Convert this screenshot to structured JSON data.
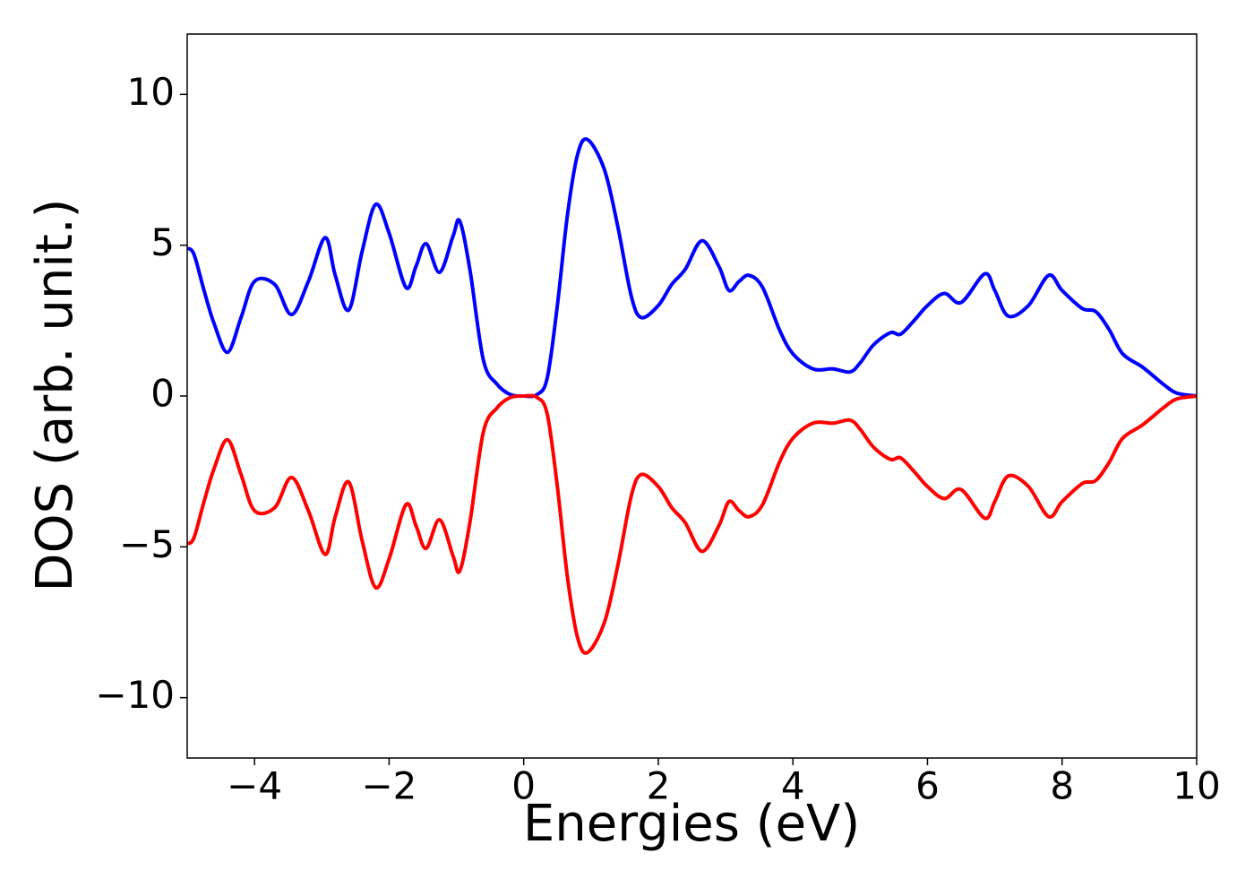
{
  "chart_data": {
    "type": "line",
    "xlabel": "Energies (eV)",
    "ylabel": "DOS (arb. unit.)",
    "xlim": [
      -5,
      10
    ],
    "ylim": [
      -12,
      12
    ],
    "xticks": [
      {
        "value": -4,
        "label": "−4"
      },
      {
        "value": -2,
        "label": "−2"
      },
      0,
      2,
      4,
      6,
      8,
      10
    ],
    "yticks": [
      {
        "value": -10,
        "label": "−10"
      },
      {
        "value": -5,
        "label": "−5"
      },
      0,
      5,
      10
    ],
    "x": [
      -5,
      -4.9,
      -4.75,
      -4.6,
      -4.4,
      -4.2,
      -4.0,
      -3.7,
      -3.45,
      -3.2,
      -2.95,
      -2.8,
      -2.6,
      -2.4,
      -2.2,
      -2.0,
      -1.75,
      -1.6,
      -1.45,
      -1.25,
      -1.05,
      -0.95,
      -0.8,
      -0.6,
      -0.4,
      -0.2,
      0,
      0.2,
      0.35,
      0.5,
      0.65,
      0.8,
      0.95,
      1.2,
      1.4,
      1.6,
      1.75,
      2.0,
      2.2,
      2.4,
      2.65,
      2.9,
      3.05,
      3.2,
      3.35,
      3.55,
      3.8,
      4.0,
      4.3,
      4.6,
      4.85,
      5.0,
      5.2,
      5.45,
      5.6,
      5.8,
      6.0,
      6.25,
      6.5,
      6.85,
      7.0,
      7.2,
      7.5,
      7.8,
      8.0,
      8.3,
      8.5,
      8.7,
      8.9,
      9.2,
      9.5,
      9.7,
      10.0
    ],
    "series": [
      {
        "color": "#0000ff",
        "values": [
          4.9,
          4.7,
          3.5,
          2.4,
          1.45,
          2.6,
          3.8,
          3.7,
          2.7,
          3.8,
          5.25,
          4.0,
          2.85,
          4.8,
          6.35,
          5.4,
          3.6,
          4.3,
          5.05,
          4.1,
          5.3,
          5.8,
          4.2,
          1.2,
          0.4,
          0.05,
          0.0,
          0.05,
          0.6,
          3.0,
          6.0,
          8.0,
          8.5,
          7.5,
          5.6,
          3.3,
          2.6,
          3.0,
          3.7,
          4.2,
          5.15,
          4.3,
          3.5,
          3.8,
          4.0,
          3.6,
          2.2,
          1.4,
          0.9,
          0.9,
          0.8,
          1.1,
          1.7,
          2.1,
          2.05,
          2.5,
          3.0,
          3.4,
          3.1,
          4.05,
          3.5,
          2.65,
          3.0,
          4.0,
          3.5,
          2.9,
          2.8,
          2.2,
          1.4,
          0.95,
          0.4,
          0.1,
          0.0
        ]
      },
      {
        "color": "#ff0000",
        "values": [
          -4.9,
          -4.7,
          -3.5,
          -2.4,
          -1.45,
          -2.6,
          -3.8,
          -3.7,
          -2.7,
          -3.8,
          -5.25,
          -4.0,
          -2.85,
          -4.8,
          -6.35,
          -5.4,
          -3.6,
          -4.3,
          -5.05,
          -4.1,
          -5.3,
          -5.8,
          -4.2,
          -1.2,
          -0.4,
          -0.05,
          0.0,
          -0.05,
          -0.6,
          -3.0,
          -6.0,
          -8.0,
          -8.5,
          -7.5,
          -5.6,
          -3.3,
          -2.6,
          -3.0,
          -3.7,
          -4.2,
          -5.15,
          -4.3,
          -3.5,
          -3.8,
          -4.0,
          -3.6,
          -2.2,
          -1.4,
          -0.9,
          -0.9,
          -0.8,
          -1.1,
          -1.7,
          -2.1,
          -2.05,
          -2.5,
          -3.0,
          -3.4,
          -3.1,
          -4.05,
          -3.5,
          -2.65,
          -3.0,
          -4.0,
          -3.5,
          -2.9,
          -2.8,
          -2.2,
          -1.4,
          -0.95,
          -0.4,
          -0.1,
          0.0
        ]
      }
    ]
  }
}
